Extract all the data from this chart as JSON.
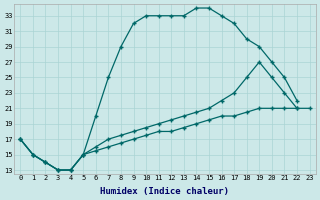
{
  "xlabel": "Humidex (Indice chaleur)",
  "bg_color": "#cce8e8",
  "grid_color": "#aad4d4",
  "line_color": "#006868",
  "line1_x": [
    0,
    1,
    2,
    3,
    4,
    5,
    6,
    7,
    8,
    9,
    10,
    11,
    12,
    13,
    14,
    15,
    16,
    17,
    18,
    19,
    20,
    21,
    22
  ],
  "line1_y": [
    17,
    15,
    14,
    13,
    13,
    15,
    20,
    25,
    29,
    32,
    33,
    33,
    33,
    33,
    34,
    34,
    33,
    32,
    30,
    29,
    27,
    25,
    22
  ],
  "line2_x": [
    0,
    1,
    2,
    3,
    4,
    5,
    6,
    7,
    8,
    9,
    10,
    11,
    12,
    13,
    14,
    15,
    16,
    17,
    18,
    19,
    20,
    21,
    22
  ],
  "line2_y": [
    17,
    15,
    14,
    13,
    13,
    15,
    16,
    17,
    17.5,
    18,
    18.5,
    19,
    19.5,
    20,
    20.5,
    21,
    22,
    23,
    25,
    27,
    25,
    23,
    21
  ],
  "line3_x": [
    0,
    1,
    2,
    3,
    4,
    5,
    6,
    7,
    8,
    9,
    10,
    11,
    12,
    13,
    14,
    15,
    16,
    17,
    18,
    19,
    20,
    21,
    22,
    23
  ],
  "line3_y": [
    17,
    15,
    14,
    13,
    13,
    15,
    15.5,
    16,
    16.5,
    17,
    17.5,
    18,
    18,
    18.5,
    19,
    19.5,
    20,
    20,
    20.5,
    21,
    21,
    21,
    21,
    21
  ],
  "yticks": [
    13,
    15,
    17,
    19,
    21,
    23,
    25,
    27,
    29,
    31,
    33
  ],
  "xlim_min": -0.5,
  "xlim_max": 23.5,
  "ylim_min": 12.5,
  "ylim_max": 34.5
}
